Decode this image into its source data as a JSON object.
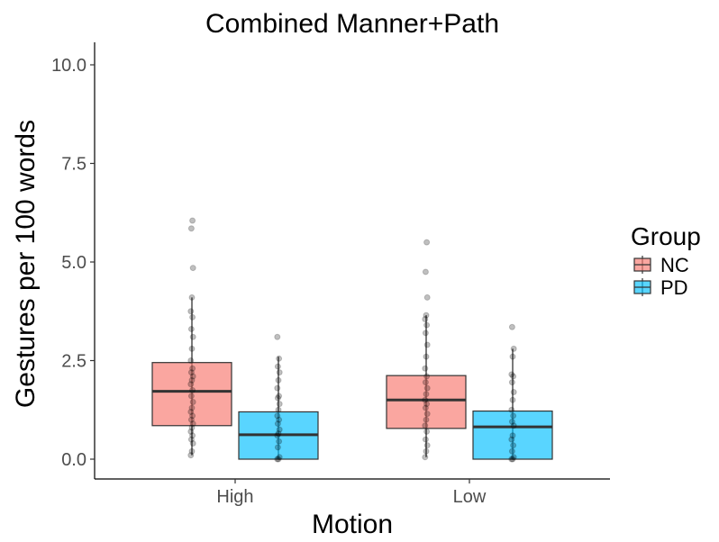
{
  "chart_data": {
    "type": "box",
    "title": "Combined Manner+Path",
    "xlabel": "Motion",
    "ylabel": "Gestures per 100 words",
    "categories": [
      "High",
      "Low"
    ],
    "ylim": [
      -0.5,
      10.5
    ],
    "yticks": [
      0.0,
      2.5,
      5.0,
      7.5,
      10.0
    ],
    "ytick_labels": [
      "0.0",
      "2.5",
      "5.0",
      "7.5",
      "10.0"
    ],
    "grid": false,
    "legend": {
      "title": "Group",
      "placement": "right",
      "entries": [
        {
          "label": "NC",
          "color": "#F8766D"
        },
        {
          "label": "PD",
          "color": "#00BFFF"
        }
      ]
    },
    "series": [
      {
        "name": "NC",
        "color": "#F8766D",
        "boxes": [
          {
            "category": "High",
            "min": 0.1,
            "q1": 0.85,
            "median": 1.72,
            "q3": 2.45,
            "max": 4.1,
            "points": [
              0.1,
              0.2,
              0.4,
              0.5,
              0.6,
              0.7,
              0.8,
              0.9,
              1.0,
              1.1,
              1.2,
              1.3,
              1.45,
              1.6,
              1.75,
              1.9,
              2.0,
              2.1,
              2.2,
              2.3,
              2.5,
              2.8,
              3.1,
              3.3,
              3.6,
              3.75,
              4.1,
              4.85,
              5.85,
              6.05
            ]
          },
          {
            "category": "Low",
            "min": 0.05,
            "q1": 0.78,
            "median": 1.5,
            "q3": 2.12,
            "max": 3.65,
            "points": [
              0.05,
              0.2,
              0.35,
              0.5,
              0.7,
              0.85,
              1.0,
              1.15,
              1.3,
              1.4,
              1.5,
              1.65,
              1.8,
              1.95,
              2.1,
              2.3,
              2.6,
              2.9,
              3.2,
              3.4,
              3.55,
              3.65,
              4.1,
              4.75,
              5.5
            ]
          }
        ]
      },
      {
        "name": "PD",
        "color": "#00BFFF",
        "boxes": [
          {
            "category": "High",
            "min": 0.0,
            "q1": 0.0,
            "median": 0.62,
            "q3": 1.2,
            "max": 2.6,
            "points": [
              0.0,
              0.0,
              0.05,
              0.3,
              0.45,
              0.6,
              0.65,
              0.75,
              0.9,
              1.0,
              1.1,
              1.25,
              1.4,
              1.55,
              1.6,
              1.8,
              2.0,
              2.2,
              2.35,
              2.55,
              3.1
            ]
          },
          {
            "category": "Low",
            "min": 0.0,
            "q1": 0.0,
            "median": 0.82,
            "q3": 1.22,
            "max": 2.8,
            "points": [
              0.0,
              0.0,
              0.05,
              0.2,
              0.35,
              0.5,
              0.6,
              0.85,
              0.95,
              1.1,
              1.25,
              1.5,
              1.7,
              1.95,
              2.1,
              2.15,
              2.6,
              2.8,
              3.35
            ]
          }
        ]
      }
    ]
  }
}
